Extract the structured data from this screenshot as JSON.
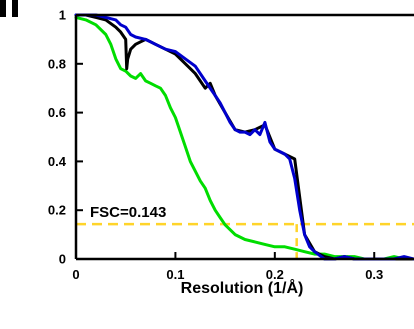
{
  "chart_data": {
    "type": "line",
    "title": "",
    "xlabel": "Resolution (1/Å)",
    "ylabel": "",
    "xlim": [
      0,
      0.34
    ],
    "ylim": [
      0,
      1
    ],
    "xticks": [
      0,
      0.1,
      0.2,
      0.3
    ],
    "xtick_labels": [
      "0",
      "0.1",
      "0.2",
      "0.3"
    ],
    "yticks": [
      0,
      0.2,
      0.4,
      0.6,
      0.8,
      1
    ],
    "ytick_labels": [
      "0",
      "0.2",
      "0.4",
      "0.6",
      "0.8",
      "1"
    ],
    "grid": false,
    "annotation": {
      "text": "FSC=0.143",
      "threshold": 0.143,
      "resolution_at_threshold": 0.222,
      "color": "#ffd42a"
    },
    "series": [
      {
        "color": "#0000cc",
        "x": [
          0,
          0.01,
          0.02,
          0.03,
          0.04,
          0.045,
          0.05,
          0.055,
          0.06,
          0.07,
          0.08,
          0.09,
          0.1,
          0.11,
          0.12,
          0.13,
          0.14,
          0.145,
          0.15,
          0.155,
          0.16,
          0.165,
          0.17,
          0.175,
          0.18,
          0.185,
          0.19,
          0.195,
          0.2,
          0.205,
          0.21,
          0.215,
          0.22,
          0.225,
          0.23,
          0.235,
          0.24,
          0.25,
          0.26,
          0.27,
          0.28,
          0.29,
          0.3,
          0.31,
          0.32,
          0.33,
          0.34
        ],
        "y": [
          1.0,
          1.0,
          1.0,
          0.99,
          0.98,
          0.96,
          0.95,
          0.92,
          0.91,
          0.9,
          0.88,
          0.86,
          0.85,
          0.82,
          0.79,
          0.73,
          0.67,
          0.64,
          0.6,
          0.56,
          0.53,
          0.52,
          0.52,
          0.51,
          0.53,
          0.51,
          0.56,
          0.48,
          0.45,
          0.44,
          0.43,
          0.41,
          0.33,
          0.2,
          0.1,
          0.05,
          0.03,
          0.0,
          0.0,
          0.01,
          0.0,
          0.0,
          0.0,
          0.0,
          0.0,
          0.01,
          0.0
        ]
      },
      {
        "color": "#000000",
        "x": [
          0,
          0.01,
          0.02,
          0.03,
          0.04,
          0.045,
          0.05,
          0.051,
          0.052,
          0.055,
          0.06,
          0.065,
          0.07,
          0.075,
          0.08,
          0.09,
          0.1,
          0.11,
          0.12,
          0.13,
          0.135,
          0.14,
          0.15,
          0.16,
          0.17,
          0.18,
          0.19,
          0.2,
          0.21,
          0.22,
          0.23,
          0.24,
          0.25,
          0.26,
          0.27,
          0.28,
          0.29,
          0.3,
          0.31,
          0.32,
          0.33,
          0.34
        ],
        "y": [
          1.0,
          1.0,
          0.99,
          0.98,
          0.95,
          0.93,
          0.9,
          0.78,
          0.82,
          0.86,
          0.88,
          0.89,
          0.9,
          0.89,
          0.88,
          0.86,
          0.84,
          0.8,
          0.76,
          0.7,
          0.72,
          0.67,
          0.6,
          0.53,
          0.52,
          0.53,
          0.55,
          0.45,
          0.43,
          0.41,
          0.1,
          0.03,
          0.01,
          0.0,
          0.01,
          0.0,
          0.0,
          0.0,
          0.0,
          0.0,
          0.0,
          0.0
        ]
      },
      {
        "color": "#00dd00",
        "x": [
          0,
          0.01,
          0.02,
          0.03,
          0.035,
          0.04,
          0.045,
          0.05,
          0.055,
          0.06,
          0.065,
          0.07,
          0.075,
          0.08,
          0.085,
          0.09,
          0.095,
          0.1,
          0.105,
          0.11,
          0.115,
          0.12,
          0.125,
          0.13,
          0.135,
          0.14,
          0.145,
          0.15,
          0.16,
          0.17,
          0.18,
          0.19,
          0.2,
          0.21,
          0.22,
          0.23,
          0.24,
          0.25,
          0.26,
          0.27,
          0.28,
          0.29,
          0.3,
          0.31,
          0.32,
          0.33,
          0.34
        ],
        "y": [
          0.99,
          0.98,
          0.96,
          0.92,
          0.88,
          0.82,
          0.78,
          0.77,
          0.75,
          0.74,
          0.76,
          0.73,
          0.72,
          0.71,
          0.7,
          0.67,
          0.62,
          0.58,
          0.52,
          0.46,
          0.4,
          0.36,
          0.32,
          0.29,
          0.24,
          0.2,
          0.17,
          0.14,
          0.1,
          0.08,
          0.07,
          0.06,
          0.05,
          0.05,
          0.04,
          0.03,
          0.02,
          0.02,
          0.01,
          0.01,
          0.01,
          0.0,
          0.0,
          0.0,
          0.01,
          0.0,
          0.0
        ]
      }
    ]
  }
}
